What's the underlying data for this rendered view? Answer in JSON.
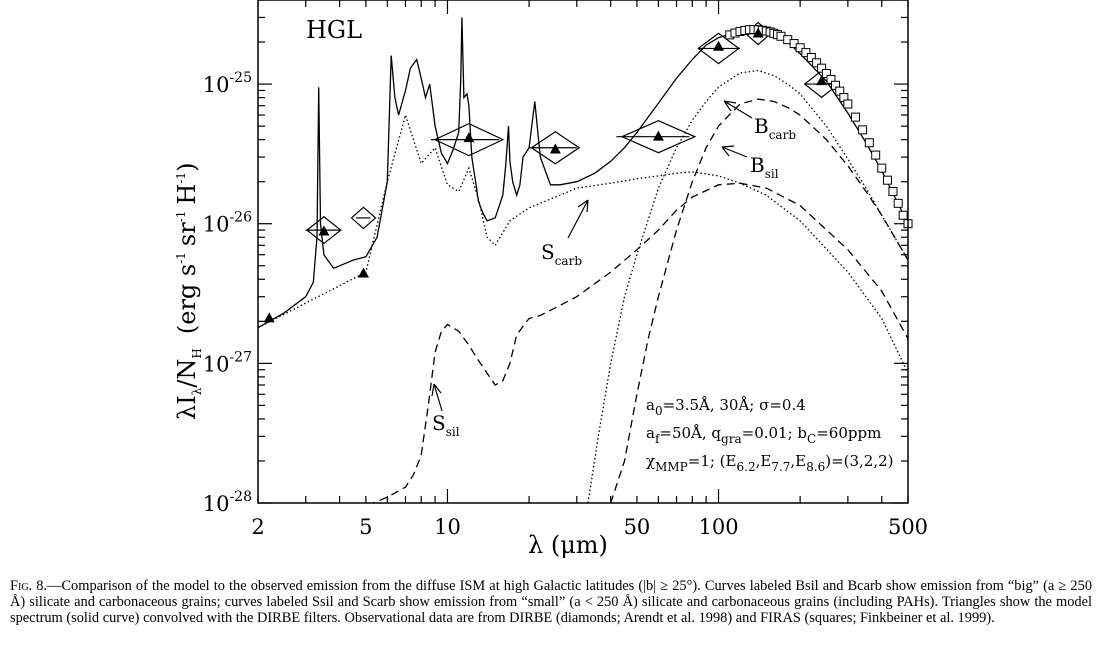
{
  "chart_data": {
    "type": "line",
    "panel_label": "HGL",
    "xscale": "log",
    "yscale": "log",
    "xlim": [
      2,
      500
    ],
    "ylim": [
      1e-28,
      4e-25
    ],
    "x_ticks": [
      2,
      5,
      10,
      50,
      100,
      500
    ],
    "y_ticks": [
      1e-28,
      1e-27,
      1e-26,
      1e-25
    ],
    "y_tick_labels": {
      "exp": [
        "-28",
        "-27",
        "-26",
        "-25"
      ]
    },
    "xlabel": "λ (μm)",
    "ylabel": "λI",
    "ylabel_sub": "λ",
    "ylabel_den": "/N",
    "ylabel_den_sub": "H",
    "ylabel_units": "(erg s",
    "ylabel_units_2": "sr",
    "ylabel_units_3": "H",
    "annotations": [
      "a0=3.5Å, 30Å; σ=0.4",
      "af=50Å, qgra=0.01; bC=60ppm",
      "χMMP=1; (E6.2,E7.7,E8.6)=(3,2,2)"
    ],
    "series": [
      {
        "name": "Bcarb",
        "style": "dotted",
        "x": [
          33,
          36,
          40,
          45,
          50,
          60,
          70,
          80,
          90,
          100,
          120,
          140,
          160,
          180,
          200,
          250,
          300,
          350,
          400,
          500
        ],
        "y": [
          1e-28,
          3e-28,
          1e-27,
          3e-27,
          6e-27,
          1.8e-26,
          3.5e-26,
          5.5e-26,
          7.5e-26,
          9.5e-26,
          1.2e-25,
          1.25e-25,
          1.15e-25,
          1e-25,
          8.5e-26,
          5e-26,
          2.9e-26,
          1.8e-26,
          1.15e-26,
          5.5e-27
        ]
      },
      {
        "name": "Bsil",
        "style": "dashed",
        "x": [
          40,
          45,
          50,
          55,
          60,
          70,
          80,
          90,
          100,
          120,
          140,
          160,
          180,
          200,
          250,
          300,
          350,
          400,
          500
        ],
        "y": [
          1e-28,
          2e-28,
          6e-28,
          1.5e-27,
          3e-27,
          9e-27,
          2e-26,
          3.5e-26,
          5e-26,
          7.2e-26,
          7.8e-26,
          7.5e-26,
          6.8e-26,
          6e-26,
          4e-26,
          2.6e-26,
          1.7e-26,
          1.15e-26,
          5.5e-27
        ]
      },
      {
        "name": "Ssil",
        "style": "dashed",
        "x": [
          3,
          4,
          5,
          6,
          7,
          7.5,
          8,
          8.5,
          9,
          9.5,
          10,
          11,
          12,
          13,
          14,
          15,
          16,
          17,
          18,
          20,
          22,
          25,
          30,
          40,
          50,
          60,
          70,
          80,
          100,
          120,
          150,
          200,
          300,
          400,
          500
        ],
        "y": [
          7e-29,
          8e-29,
          9.5e-29,
          1.1e-28,
          1.3e-28,
          1.6e-28,
          2.2e-28,
          5e-28,
          1.2e-27,
          1.7e-27,
          1.9e-27,
          1.7e-27,
          1.35e-27,
          1.05e-27,
          8.5e-28,
          7e-28,
          7.5e-28,
          1e-27,
          1.6e-27,
          2.1e-27,
          2.2e-27,
          2.5e-27,
          3e-27,
          4.5e-27,
          6.5e-27,
          9e-27,
          1.25e-26,
          1.55e-26,
          1.9e-26,
          1.95e-26,
          1.8e-26,
          1.35e-26,
          6.5e-27,
          3.3e-27,
          1.5e-27
        ]
      },
      {
        "name": "Scarb",
        "style": "dotted",
        "x": [
          2,
          3,
          4,
          5,
          6,
          7,
          8,
          9,
          10,
          11,
          12,
          13,
          14,
          15,
          17,
          20,
          25,
          30,
          40,
          50,
          60,
          70,
          80,
          100,
          120,
          150,
          200,
          300,
          400,
          500
        ],
        "y": [
          1.8e-27,
          2.7e-27,
          3.6e-27,
          4.5e-27,
          2e-26,
          6e-26,
          2.7e-26,
          3.5e-26,
          1.9e-26,
          1.7e-26,
          2.5e-26,
          1.5e-26,
          8e-27,
          7e-27,
          1.05e-26,
          1.3e-26,
          1.55e-26,
          1.8e-26,
          1.95e-26,
          2.1e-26,
          2.2e-26,
          2.3e-26,
          2.35e-26,
          2.2e-26,
          1.95e-26,
          1.6e-26,
          1.05e-26,
          4.5e-27,
          2.1e-27,
          8.5e-28
        ]
      },
      {
        "name": "",
        "style": "solid",
        "x": [
          2,
          2.5,
          3,
          3.2,
          3.3,
          3.35,
          3.4,
          3.5,
          3.8,
          4,
          4.5,
          5,
          5.5,
          6,
          6.2,
          6.4,
          6.6,
          7,
          7.3,
          7.7,
          8,
          8.3,
          8.6,
          9,
          9.5,
          10,
          10.5,
          11,
          11.2,
          11.3,
          11.5,
          11.8,
          12,
          12.3,
          12.7,
          13,
          13.5,
          14,
          15,
          16,
          16.4,
          16.8,
          17,
          17.4,
          18,
          18.5,
          19,
          20,
          21,
          22,
          24,
          26,
          30,
          35,
          40,
          45,
          50,
          60,
          70,
          80,
          90,
          100,
          120,
          140,
          150,
          160,
          180,
          200,
          250,
          300,
          350,
          400,
          500
        ],
        "y": [
          1.8e-27,
          2.3e-27,
          3e-27,
          3.8e-27,
          8e-27,
          9.5e-26,
          1e-26,
          6e-27,
          4.8e-27,
          5e-27,
          5.5e-27,
          5.8e-27,
          8e-27,
          2e-26,
          1.6e-25,
          8e-26,
          6e-26,
          9e-26,
          1.3e-25,
          1.5e-25,
          1.1e-25,
          8e-26,
          1e-25,
          5e-26,
          3.2e-26,
          2.7e-26,
          3.4e-26,
          4.5e-26,
          1.1e-25,
          3e-25,
          8e-26,
          8.5e-26,
          7e-26,
          3e-26,
          2e-26,
          1.45e-26,
          1.2e-26,
          1.05e-26,
          1.1e-26,
          1.6e-26,
          2.6e-26,
          5e-26,
          2.8e-26,
          2e-26,
          1.6e-26,
          1.9e-26,
          3e-26,
          3.5e-26,
          7.5e-26,
          3e-26,
          1.9e-26,
          1.9e-26,
          2e-26,
          2.3e-26,
          2.8e-26,
          3.5e-26,
          4.5e-26,
          7.3e-26,
          1.1e-25,
          1.5e-25,
          1.9e-25,
          2.15e-25,
          2.4e-25,
          2.45e-25,
          2.4e-25,
          2.3e-25,
          2e-25,
          1.65e-25,
          1.05e-25,
          6.2e-26,
          3.8e-26,
          2.4e-26,
          1e-26
        ]
      }
    ],
    "dirbe_diamonds": [
      {
        "x": 3.5,
        "y": 9e-27,
        "xerr": [
          3.0,
          4.0
        ]
      },
      {
        "x": 4.9,
        "y": 1.1e-26,
        "xerr": [
          4.6,
          5.2
        ]
      },
      {
        "x": 12,
        "y": 4e-26,
        "xerr": [
          8.7,
          15.5
        ]
      },
      {
        "x": 25,
        "y": 3.5e-26,
        "xerr": [
          20,
          30
        ]
      },
      {
        "x": 60,
        "y": 4.2e-26,
        "xerr": [
          42,
          78
        ]
      },
      {
        "x": 100,
        "y": 1.8e-25,
        "xerr": [
          85,
          120
        ]
      },
      {
        "x": 140,
        "y": 2.3e-25,
        "xerr": [
          125,
          155
        ]
      },
      {
        "x": 240,
        "y": 1e-25,
        "xerr": [
          210,
          280
        ]
      }
    ],
    "model_triangles": [
      {
        "x": 2.2,
        "y": 2.1e-27
      },
      {
        "x": 3.5,
        "y": 8.8e-27
      },
      {
        "x": 4.9,
        "y": 4.4e-27
      },
      {
        "x": 12,
        "y": 4.1e-26
      },
      {
        "x": 25,
        "y": 3.4e-26
      },
      {
        "x": 60,
        "y": 4.2e-26
      },
      {
        "x": 100,
        "y": 1.85e-25
      },
      {
        "x": 140,
        "y": 2.3e-25
      },
      {
        "x": 240,
        "y": 1.05e-25
      }
    ],
    "firas_squares": {
      "x": [
        110,
        115,
        120,
        125,
        130,
        135,
        140,
        145,
        150,
        155,
        160,
        165,
        170,
        180,
        190,
        200,
        210,
        220,
        230,
        240,
        250,
        260,
        270,
        280,
        290,
        300,
        320,
        340,
        360,
        380,
        400,
        420,
        440,
        460,
        480,
        500
      ],
      "y": [
        2.25e-25,
        2.32e-25,
        2.38e-25,
        2.42e-25,
        2.45e-25,
        2.46e-25,
        2.45e-25,
        2.43e-25,
        2.4e-25,
        2.36e-25,
        2.31e-25,
        2.26e-25,
        2.2e-25,
        2.08e-25,
        1.95e-25,
        1.82e-25,
        1.68e-25,
        1.55e-25,
        1.42e-25,
        1.3e-25,
        1.19e-25,
        1.08e-25,
        9.8e-26,
        8.9e-26,
        8e-26,
        7.2e-26,
        5.8e-26,
        4.7e-26,
        3.8e-26,
        3.1e-26,
        2.5e-26,
        2.05e-26,
        1.7e-26,
        1.4e-26,
        1.15e-26,
        1e-26
      ]
    }
  },
  "caption": {
    "fig_label": "Fig. 8.",
    "text": "—Comparison of the model to the observed emission from the diffuse ISM at high Galactic latitudes (|b| ≥ 25°). Curves labeled Bsil and Bcarb show emission from “big” (a ≥ 250 Å) silicate and carbonaceous grains; curves labeled Ssil and Scarb show emission from “small” (a < 250 Å) silicate and carbonaceous grains (including PAHs). Triangles show the model spectrum (solid curve) convolved with the DIRBE filters. Observational data are from DIRBE (diamonds; Arendt et al. 1998) and FIRAS (squares; Finkbeiner et al. 1999)."
  }
}
